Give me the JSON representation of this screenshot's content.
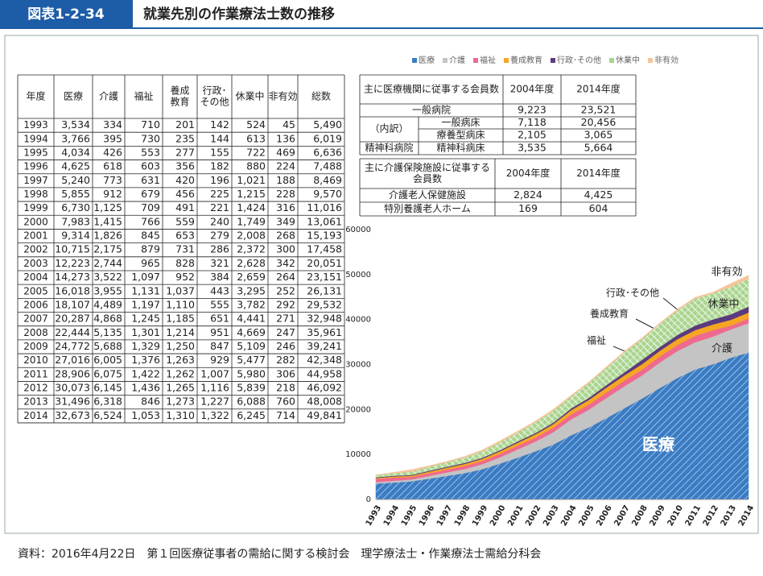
{
  "header": {
    "label": "図表1-2-34",
    "title": "就業先別の作業療法士数の推移"
  },
  "table": {
    "columns": [
      [
        "年度"
      ],
      [
        "医療"
      ],
      [
        "介護"
      ],
      [
        "福祉"
      ],
      [
        "養成",
        "教育"
      ],
      [
        "行政･",
        "その他"
      ],
      [
        "休業中"
      ],
      [
        "非有効"
      ],
      [
        "総数"
      ]
    ],
    "rows": [
      [
        "1993",
        "3,534",
        "334",
        "710",
        "201",
        "142",
        "524",
        "45",
        "5,490"
      ],
      [
        "1994",
        "3,766",
        "395",
        "730",
        "235",
        "144",
        "613",
        "136",
        "6,019"
      ],
      [
        "1995",
        "4,034",
        "426",
        "553",
        "277",
        "155",
        "722",
        "469",
        "6,636"
      ],
      [
        "1996",
        "4,625",
        "618",
        "603",
        "356",
        "182",
        "880",
        "224",
        "7,488"
      ],
      [
        "1997",
        "5,240",
        "773",
        "631",
        "420",
        "196",
        "1,021",
        "188",
        "8,469"
      ],
      [
        "1998",
        "5,855",
        "912",
        "679",
        "456",
        "225",
        "1,215",
        "228",
        "9,570"
      ],
      [
        "1999",
        "6,730",
        "1,125",
        "709",
        "491",
        "221",
        "1,424",
        "316",
        "11,016"
      ],
      [
        "2000",
        "7,983",
        "1,415",
        "766",
        "559",
        "240",
        "1,749",
        "349",
        "13,061"
      ],
      [
        "2001",
        "9,314",
        "1,826",
        "845",
        "653",
        "279",
        "2,008",
        "268",
        "15,193"
      ],
      [
        "2002",
        "10,715",
        "2,175",
        "879",
        "731",
        "286",
        "2,372",
        "300",
        "17,458"
      ],
      [
        "2003",
        "12,223",
        "2,744",
        "965",
        "828",
        "321",
        "2,628",
        "342",
        "20,051"
      ],
      [
        "2004",
        "14,273",
        "3,522",
        "1,097",
        "952",
        "384",
        "2,659",
        "264",
        "23,151"
      ],
      [
        "2005",
        "16,018",
        "3,955",
        "1,131",
        "1,037",
        "443",
        "3,295",
        "252",
        "26,131"
      ],
      [
        "2006",
        "18,107",
        "4,489",
        "1,197",
        "1,110",
        "555",
        "3,782",
        "292",
        "29,532"
      ],
      [
        "2007",
        "20,287",
        "4,868",
        "1,245",
        "1,185",
        "651",
        "4,441",
        "271",
        "32,948"
      ],
      [
        "2008",
        "22,444",
        "5,135",
        "1,301",
        "1,214",
        "951",
        "4,669",
        "247",
        "35,961"
      ],
      [
        "2009",
        "24,772",
        "5,688",
        "1,329",
        "1,250",
        "847",
        "5,109",
        "246",
        "39,241"
      ],
      [
        "2010",
        "27,016",
        "6,005",
        "1,376",
        "1,263",
        "929",
        "5,477",
        "282",
        "42,348"
      ],
      [
        "2011",
        "28,906",
        "6,075",
        "1,422",
        "1,262",
        "1,007",
        "5,980",
        "306",
        "44,958"
      ],
      [
        "2012",
        "30,073",
        "6,145",
        "1,436",
        "1,265",
        "1,116",
        "5,839",
        "218",
        "46,092"
      ],
      [
        "2013",
        "31,496",
        "6,318",
        "846",
        "1,273",
        "1,227",
        "6,088",
        "760",
        "48,008"
      ],
      [
        "2014",
        "32,673",
        "6,524",
        "1,053",
        "1,310",
        "1,322",
        "6,245",
        "714",
        "49,841"
      ]
    ]
  },
  "hospital_table": {
    "header": [
      [
        "主に医療機関に従事する会員数"
      ],
      [
        "2004年度"
      ],
      [
        "2014年度"
      ]
    ],
    "rows": [
      {
        "label": "一般病院",
        "values": [
          "9,223",
          "23,521"
        ]
      },
      {
        "label": "（内訳）",
        "sublabel": "一般病床",
        "values": [
          "7,118",
          "20,456"
        ]
      },
      {
        "sublabel": "療養型病床",
        "values": [
          "2,105",
          "3,065"
        ]
      },
      {
        "label": "精神科病院",
        "sublabel": "精神科病床",
        "values": [
          "3,535",
          "5,664"
        ]
      }
    ]
  },
  "care_table": {
    "header": [
      [
        "主に介護保険施設に従事する",
        "会員数"
      ],
      [
        "2004年度"
      ],
      [
        "2014年度"
      ]
    ],
    "rows": [
      {
        "label": "介護老人保健施設",
        "values": [
          "2,824",
          "4,425"
        ]
      },
      {
        "label": "特別養護老人ホーム",
        "values": [
          "169",
          "604"
        ]
      }
    ]
  },
  "chart_data": {
    "type": "stacked-area",
    "x": [
      "1993",
      "1994",
      "1995",
      "1996",
      "1997",
      "1998",
      "1999",
      "2000",
      "2001",
      "2002",
      "2003",
      "2004",
      "2005",
      "2006",
      "2007",
      "2008",
      "2009",
      "2010",
      "2011",
      "2012",
      "2013",
      "2014"
    ],
    "series": [
      {
        "name": "医療",
        "color": "#3a7cc4",
        "hatch": true,
        "values": [
          3534,
          3766,
          4034,
          4625,
          5240,
          5855,
          6730,
          7983,
          9314,
          10715,
          12223,
          14273,
          16018,
          18107,
          20287,
          22444,
          24772,
          27016,
          28906,
          30073,
          31496,
          32673
        ]
      },
      {
        "name": "介護",
        "color": "#c4c4c4",
        "values": [
          334,
          395,
          426,
          618,
          773,
          912,
          1125,
          1415,
          1826,
          2175,
          2744,
          3522,
          3955,
          4489,
          4868,
          5135,
          5688,
          6005,
          6075,
          6145,
          6318,
          6524
        ]
      },
      {
        "name": "福祉",
        "color": "#ef6a8f",
        "values": [
          710,
          730,
          553,
          603,
          631,
          679,
          709,
          766,
          845,
          879,
          965,
          1097,
          1131,
          1197,
          1245,
          1301,
          1329,
          1376,
          1422,
          1436,
          846,
          1053
        ]
      },
      {
        "name": "養成教育",
        "color": "#f5a623",
        "values": [
          201,
          235,
          277,
          356,
          420,
          456,
          491,
          559,
          653,
          731,
          828,
          952,
          1037,
          1110,
          1185,
          1214,
          1250,
          1263,
          1262,
          1265,
          1273,
          1310
        ]
      },
      {
        "name": "行政･その他",
        "color": "#5b3a7e",
        "values": [
          142,
          144,
          155,
          182,
          196,
          225,
          221,
          240,
          279,
          286,
          321,
          384,
          443,
          555,
          651,
          951,
          847,
          929,
          1007,
          1116,
          1227,
          1322
        ]
      },
      {
        "name": "休業中",
        "color": "#a9d48e",
        "hatch": true,
        "values": [
          524,
          613,
          722,
          880,
          1021,
          1215,
          1424,
          1749,
          2008,
          2372,
          2628,
          2659,
          3295,
          3782,
          4441,
          4669,
          5109,
          5477,
          5980,
          5839,
          6088,
          6245
        ]
      },
      {
        "name": "非有効",
        "color": "#f7c49a",
        "values": [
          45,
          136,
          469,
          224,
          188,
          228,
          316,
          349,
          268,
          300,
          342,
          264,
          252,
          292,
          271,
          247,
          246,
          282,
          306,
          218,
          760,
          714
        ]
      }
    ],
    "ylim": [
      0,
      60000
    ],
    "yticks": [
      0,
      10000,
      20000,
      30000,
      40000,
      50000,
      60000
    ],
    "grid": false,
    "legend": "top"
  },
  "source": "資料：2016年4月22日　第１回医療従事者の需給に関する検討会　理学療法士・作業療法士需給分科会"
}
